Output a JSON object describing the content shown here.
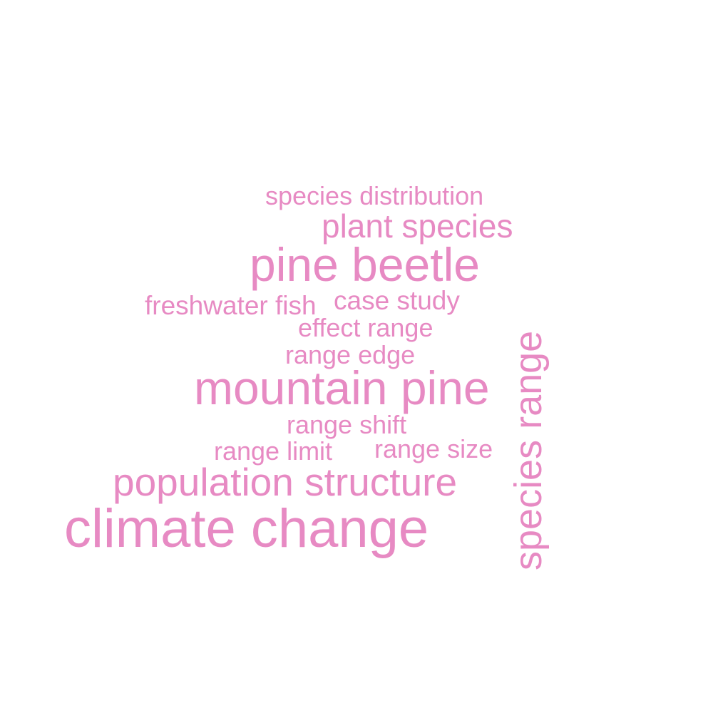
{
  "color": "#e78ac3",
  "words": {
    "species_distribution": "species distribution",
    "plant_species": "plant species",
    "pine_beetle": "pine beetle",
    "freshwater_fish": "freshwater fish",
    "case_study": "case study",
    "effect_range": "effect range",
    "range_edge": "range edge",
    "mountain_pine": "mountain pine",
    "range_shift": "range shift",
    "range_limit": "range limit",
    "range_size": "range size",
    "population_structure": "population structure",
    "climate_change": "climate change",
    "species_range": "species range"
  }
}
